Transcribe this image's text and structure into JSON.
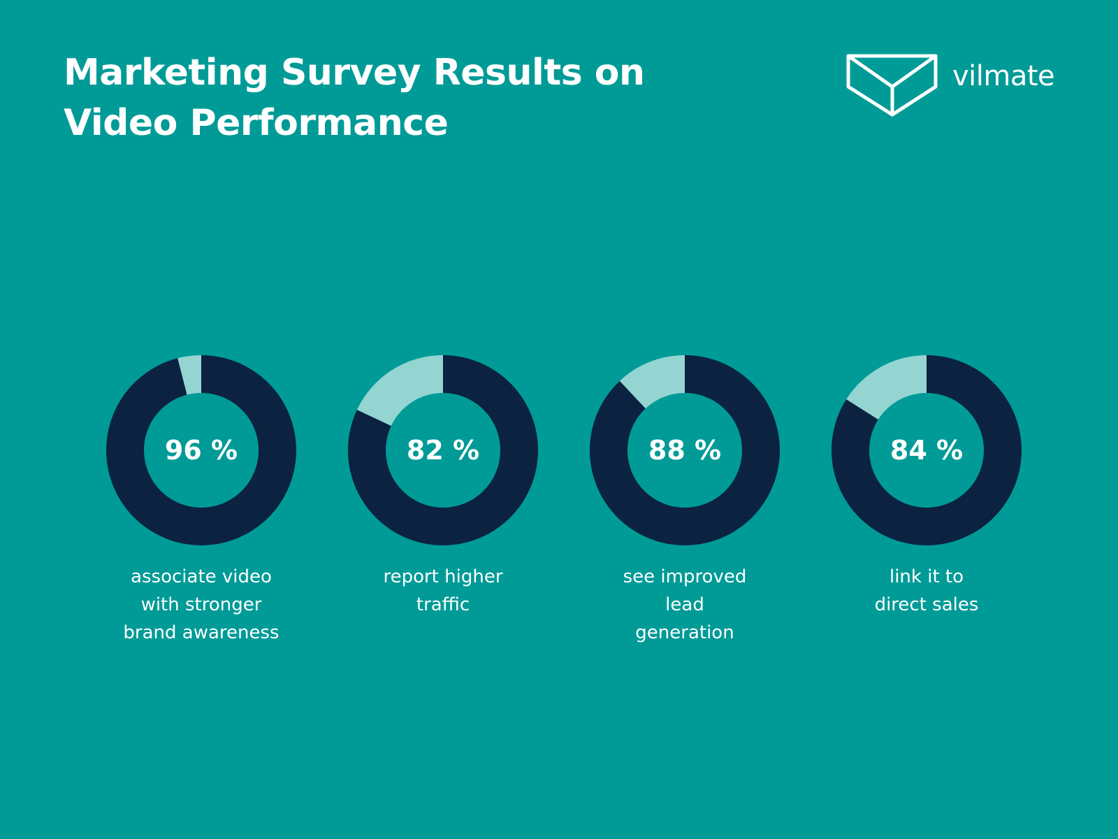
{
  "title": "Marketing Survey Results on\nVideo Performance",
  "logo": {
    "icon": "envelope-box-icon",
    "text": "vilmate"
  },
  "colors": {
    "background": "#009b97",
    "filled": "#0b2240",
    "remainder": "#94d5d2",
    "text": "#ffffff"
  },
  "chart_data": {
    "type": "pie",
    "series": [
      {
        "value": 96,
        "value_label": "96 %",
        "caption": "associate video\nwith stronger\nbrand awareness"
      },
      {
        "value": 82,
        "value_label": "82 %",
        "caption": "report higher\ntraffic"
      },
      {
        "value": 88,
        "value_label": "88 %",
        "caption": "see improved\nlead\ngeneration"
      },
      {
        "value": 84,
        "value_label": "84 %",
        "caption": "link it to\ndirect sales"
      }
    ]
  }
}
